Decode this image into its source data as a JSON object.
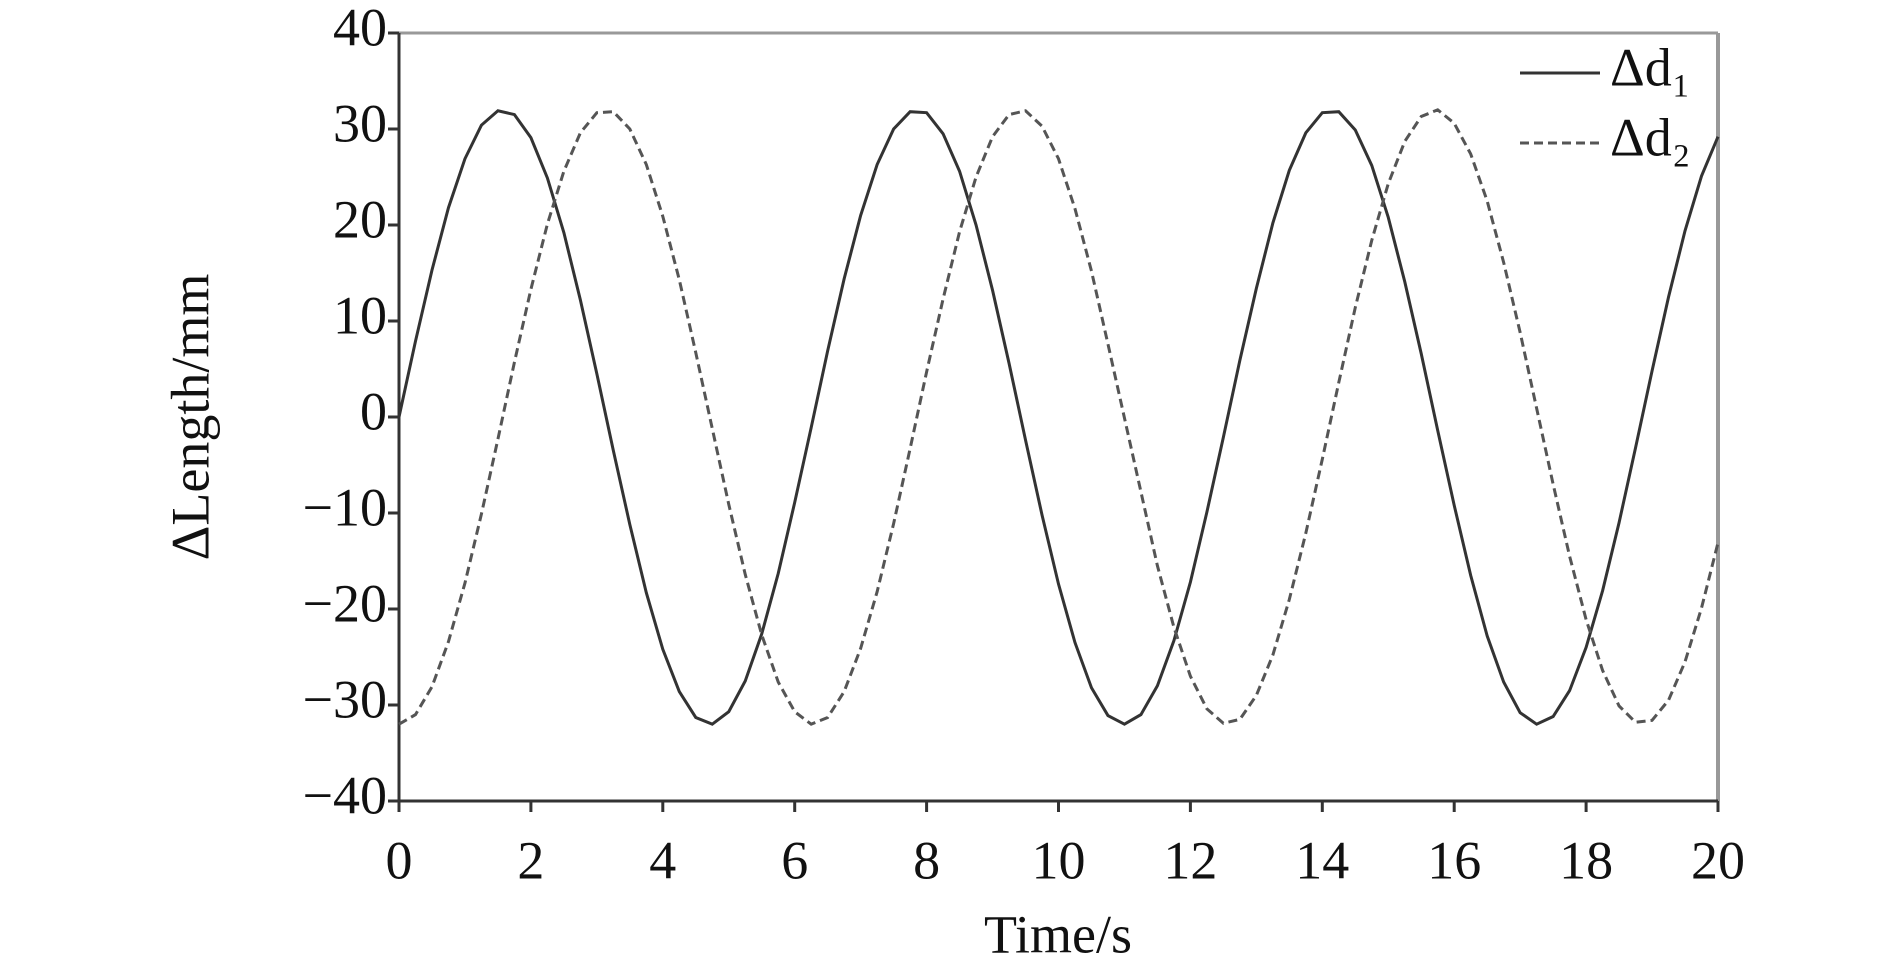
{
  "chart_data": {
    "type": "line",
    "x_label": "Time/s",
    "y_label": "ΔLength/mm",
    "x": [
      0,
      0.25,
      0.5,
      0.75,
      1,
      1.25,
      1.5,
      1.75,
      2,
      2.25,
      2.5,
      2.75,
      3,
      3.25,
      3.5,
      3.75,
      4,
      4.25,
      4.5,
      4.75,
      5,
      5.25,
      5.5,
      5.75,
      6,
      6.25,
      6.5,
      6.75,
      7,
      7.25,
      7.5,
      7.75,
      8,
      8.25,
      8.5,
      8.75,
      9,
      9.25,
      9.5,
      9.75,
      10,
      10.25,
      10.5,
      10.75,
      11,
      11.25,
      11.5,
      11.75,
      12,
      12.25,
      12.5,
      12.75,
      13,
      13.25,
      13.5,
      13.75,
      14,
      14.25,
      14.5,
      14.75,
      15,
      15.25,
      15.5,
      15.75,
      16,
      16.25,
      16.5,
      16.75,
      17,
      17.25,
      17.5,
      17.75,
      18,
      18.25,
      18.5,
      18.75,
      19,
      19.25,
      19.5,
      19.75,
      20
    ],
    "series": [
      {
        "name": "Δd₁",
        "color": "#333333",
        "line_style": "solid",
        "values": [
          0,
          7.9,
          15.3,
          21.8,
          26.9,
          30.4,
          31.9,
          31.5,
          29.1,
          24.9,
          19.2,
          12.2,
          4.5,
          -3.5,
          -11.2,
          -18.3,
          -24.2,
          -28.6,
          -31.3,
          -32.0,
          -30.7,
          -27.5,
          -22.6,
          -16.3,
          -8.9,
          -1.1,
          6.9,
          14.4,
          21.0,
          26.3,
          30.0,
          31.8,
          31.7,
          29.5,
          25.6,
          20.0,
          13.2,
          5.6,
          -2.4,
          -10.2,
          -17.4,
          -23.5,
          -28.2,
          -31.1,
          -32.0,
          -31.0,
          -28.0,
          -23.3,
          -17.2,
          -9.9,
          -2.1,
          5.9,
          13.4,
          20.2,
          25.7,
          29.6,
          31.7,
          31.8,
          29.9,
          26.2,
          20.8,
          14.1,
          6.6,
          -1.4,
          -9.2,
          -16.5,
          -22.8,
          -27.6,
          -30.8,
          -32.0,
          -31.2,
          -28.5,
          -24.0,
          -18.1,
          -11.0,
          -3.2,
          4.8,
          12.5,
          19.4,
          25.1,
          29.2
        ]
      },
      {
        "name": "Δd₂",
        "color": "#555555",
        "line_style": "dashed",
        "values": [
          -32.0,
          -31.0,
          -28.1,
          -23.4,
          -17.3,
          -10.1,
          -2.3,
          5.7,
          13.3,
          20.1,
          25.6,
          29.6,
          31.7,
          31.8,
          30.0,
          26.3,
          20.9,
          14.3,
          6.7,
          -1.2,
          -9.1,
          -16.4,
          -22.7,
          -27.6,
          -30.7,
          -32.0,
          -31.3,
          -28.6,
          -24.1,
          -18.2,
          -11.1,
          -3.3,
          4.7,
          12.3,
          19.3,
          25.0,
          29.2,
          31.5,
          31.9,
          30.3,
          26.9,
          21.7,
          15.2,
          7.6,
          -0.1,
          -7.8,
          -15.5,
          -21.9,
          -27.0,
          -30.4,
          -31.9,
          -31.5,
          -29.0,
          -24.8,
          -19.0,
          -12.1,
          -4.4,
          3.6,
          11.4,
          18.4,
          24.3,
          28.7,
          31.3,
          32.0,
          30.6,
          27.4,
          22.5,
          16.1,
          8.8,
          0.9,
          -7.0,
          -14.5,
          -21.1,
          -26.4,
          -30.1,
          -31.8,
          -31.6,
          -29.5,
          -25.5,
          -19.9,
          -13.1
        ]
      }
    ],
    "xlim": [
      0,
      20
    ],
    "xticks": [
      0,
      2,
      4,
      6,
      8,
      10,
      12,
      14,
      16,
      18,
      20
    ],
    "ylim": [
      -40,
      40
    ],
    "yticks": [
      {
        "value": -40,
        "label": "−40"
      },
      {
        "value": -30,
        "label": "−30"
      },
      {
        "value": -20,
        "label": "−20"
      },
      {
        "value": -10,
        "label": "−10"
      },
      0,
      10,
      20,
      30,
      40
    ],
    "grid": false,
    "legend": "upper right"
  }
}
